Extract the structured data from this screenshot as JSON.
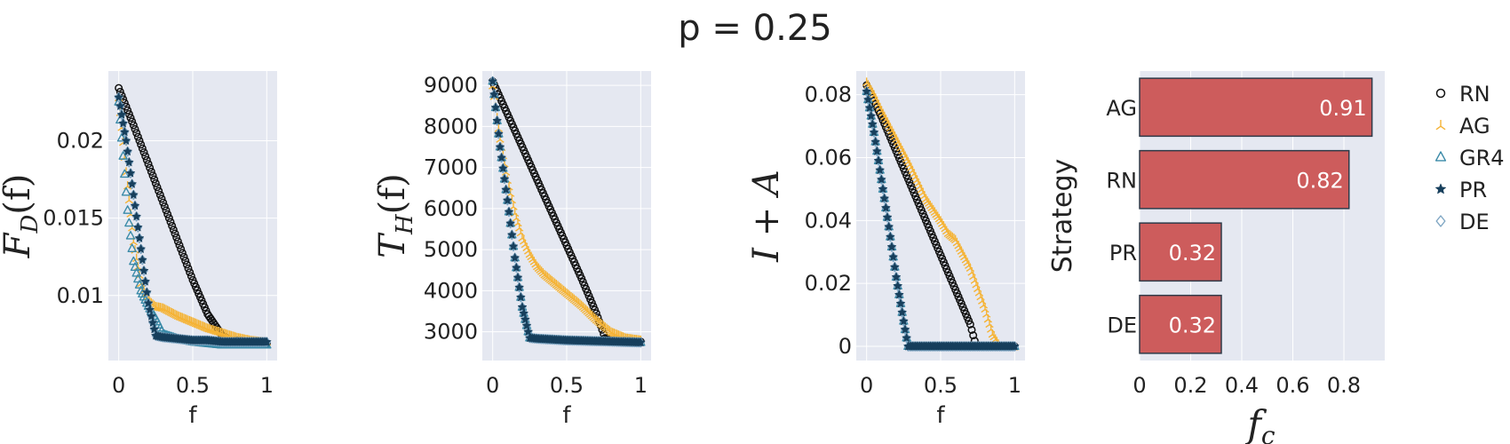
{
  "figure": {
    "title": "p = 0.25"
  },
  "legend": {
    "placement": "right",
    "items": [
      {
        "label": "RN",
        "marker": "circle-open",
        "color": "#111111"
      },
      {
        "label": "AG",
        "marker": "tri-up",
        "color": "#f5b335"
      },
      {
        "label": "GR4",
        "marker": "triangle-open",
        "color": "#3a8aa8"
      },
      {
        "label": "PR",
        "marker": "star",
        "color": "#173f5c"
      },
      {
        "label": "DE",
        "marker": "diamond-open",
        "color": "#7fa6c3"
      }
    ]
  },
  "chart_data": [
    {
      "type": "scatter",
      "xlabel": "f",
      "ylabel": "F_D(f)",
      "xlim": [
        -0.07,
        1.07
      ],
      "ylim": [
        0.0058,
        0.0245
      ],
      "xticks": [
        0,
        0.5,
        1
      ],
      "xtick_labels": [
        "0",
        "0.5",
        "1"
      ],
      "yticks": [
        0.01,
        0.015,
        0.02
      ],
      "ytick_labels": [
        "0.01",
        "0.015",
        "0.02"
      ],
      "grid": true,
      "series": [
        {
          "name": "RN",
          "x": [
            0,
            0.1,
            0.2,
            0.3,
            0.4,
            0.5,
            0.6,
            0.7,
            0.76,
            0.8,
            0.9,
            1.0
          ],
          "y": [
            0.0234,
            0.021,
            0.0185,
            0.016,
            0.0135,
            0.011,
            0.0088,
            0.0074,
            0.0071,
            0.0071,
            0.007,
            0.0069
          ]
        },
        {
          "name": "AG",
          "x": [
            0,
            0.05,
            0.1,
            0.15,
            0.2,
            0.25,
            0.3,
            0.4,
            0.5,
            0.6,
            0.7,
            0.8,
            0.9,
            1.0
          ],
          "y": [
            0.0228,
            0.018,
            0.0135,
            0.0108,
            0.0097,
            0.0093,
            0.0092,
            0.0087,
            0.0083,
            0.0079,
            0.0076,
            0.0073,
            0.0071,
            0.007
          ]
        },
        {
          "name": "GR4",
          "x": [
            0,
            0.03,
            0.06,
            0.1,
            0.15,
            0.2,
            0.25,
            0.3,
            0.4,
            0.5,
            0.6,
            0.7,
            0.8,
            0.9,
            1.0
          ],
          "y": [
            0.0225,
            0.019,
            0.0155,
            0.0122,
            0.0103,
            0.0093,
            0.0085,
            0.0075,
            0.0072,
            0.007,
            0.0069,
            0.0068,
            0.0068,
            0.0068,
            0.0068
          ]
        },
        {
          "name": "PR",
          "x": [
            0,
            0.05,
            0.1,
            0.15,
            0.2,
            0.25,
            0.3,
            0.4,
            0.5,
            0.6,
            0.7,
            0.8,
            0.9,
            1.0
          ],
          "y": [
            0.0228,
            0.02,
            0.0165,
            0.013,
            0.0095,
            0.0074,
            0.0073,
            0.0072,
            0.0071,
            0.0071,
            0.007,
            0.007,
            0.007,
            0.007
          ]
        },
        {
          "name": "DE",
          "x": [
            0,
            0.05,
            0.1,
            0.15,
            0.2,
            0.25,
            0.3,
            0.4,
            0.5,
            0.6,
            0.7,
            0.8,
            0.9,
            1.0
          ],
          "y": [
            0.0228,
            0.02,
            0.0165,
            0.013,
            0.0095,
            0.0074,
            0.0073,
            0.0072,
            0.0071,
            0.0071,
            0.007,
            0.007,
            0.007,
            0.007
          ]
        }
      ]
    },
    {
      "type": "scatter",
      "xlabel": "f",
      "ylabel": "T_H(f)",
      "xlim": [
        -0.07,
        1.07
      ],
      "ylim": [
        2300,
        9350
      ],
      "xticks": [
        0,
        0.5,
        1
      ],
      "xtick_labels": [
        "0",
        "0.5",
        "1"
      ],
      "yticks": [
        3000,
        4000,
        5000,
        6000,
        7000,
        8000,
        9000
      ],
      "ytick_labels": [
        "3000",
        "4000",
        "5000",
        "6000",
        "7000",
        "8000",
        "9000"
      ],
      "grid": true,
      "series": [
        {
          "name": "RN",
          "x": [
            0,
            0.1,
            0.2,
            0.3,
            0.4,
            0.5,
            0.6,
            0.7,
            0.76,
            0.8,
            0.9,
            1.0
          ],
          "y": [
            9100,
            8300,
            7500,
            6700,
            5900,
            5100,
            4300,
            3450,
            2850,
            2800,
            2780,
            2760
          ]
        },
        {
          "name": "AG",
          "x": [
            0,
            0.05,
            0.1,
            0.15,
            0.2,
            0.25,
            0.3,
            0.35,
            0.4,
            0.5,
            0.6,
            0.7,
            0.8,
            0.9,
            1.0
          ],
          "y": [
            9000,
            7700,
            6700,
            5900,
            5300,
            4900,
            4600,
            4400,
            4250,
            3950,
            3650,
            3300,
            3000,
            2850,
            2800
          ]
        },
        {
          "name": "GR4",
          "x": [
            0,
            0.05,
            0.1,
            0.15,
            0.2,
            0.25,
            0.3,
            0.4,
            0.5,
            0.6,
            0.7,
            0.8,
            0.9,
            1.0
          ],
          "y": [
            9100,
            7500,
            6200,
            4800,
            3600,
            2850,
            2830,
            2810,
            2790,
            2780,
            2770,
            2760,
            2750,
            2740
          ]
        },
        {
          "name": "PR",
          "x": [
            0,
            0.05,
            0.1,
            0.15,
            0.2,
            0.25,
            0.3,
            0.4,
            0.5,
            0.6,
            0.7,
            0.8,
            0.9,
            1.0
          ],
          "y": [
            9100,
            7500,
            6200,
            4800,
            3600,
            2850,
            2830,
            2810,
            2790,
            2780,
            2770,
            2760,
            2750,
            2740
          ]
        },
        {
          "name": "DE",
          "x": [
            0,
            0.05,
            0.1,
            0.15,
            0.2,
            0.25,
            0.3,
            0.4,
            0.5,
            0.6,
            0.7,
            0.8,
            0.9,
            1.0
          ],
          "y": [
            9100,
            7500,
            6200,
            4800,
            3600,
            2850,
            2830,
            2810,
            2790,
            2780,
            2770,
            2760,
            2750,
            2740
          ]
        }
      ]
    },
    {
      "type": "scatter",
      "xlabel": "f",
      "ylabel": "I + A",
      "xlim": [
        -0.07,
        1.07
      ],
      "ylim": [
        -0.0045,
        0.0875
      ],
      "xticks": [
        0,
        0.5,
        1
      ],
      "xtick_labels": [
        "0",
        "0.5",
        "1"
      ],
      "yticks": [
        0,
        0.02,
        0.04,
        0.06,
        0.08
      ],
      "ytick_labels": [
        "0",
        "0.02",
        "0.04",
        "0.06",
        "0.08"
      ],
      "grid": true,
      "series": [
        {
          "name": "RN",
          "x": [
            0,
            0.1,
            0.2,
            0.3,
            0.4,
            0.5,
            0.6,
            0.7,
            0.74,
            0.8,
            0.9,
            1.0
          ],
          "y": [
            0.083,
            0.073,
            0.062,
            0.051,
            0.04,
            0.029,
            0.018,
            0.007,
            0.0,
            0.0,
            0.0,
            0.0
          ]
        },
        {
          "name": "AG",
          "x": [
            0,
            0.05,
            0.1,
            0.2,
            0.3,
            0.4,
            0.5,
            0.55,
            0.6,
            0.7,
            0.8,
            0.85,
            0.9,
            1.0
          ],
          "y": [
            0.084,
            0.08,
            0.075,
            0.066,
            0.057,
            0.047,
            0.04,
            0.036,
            0.034,
            0.025,
            0.012,
            0.004,
            0.0,
            0.0
          ]
        },
        {
          "name": "GR4",
          "x": [
            0,
            0.05,
            0.1,
            0.15,
            0.2,
            0.25,
            0.28,
            0.3,
            0.4,
            0.5,
            0.6,
            0.7,
            0.8,
            0.9,
            1.0
          ],
          "y": [
            0.081,
            0.068,
            0.053,
            0.038,
            0.022,
            0.008,
            0.0,
            0.0,
            0.0,
            0.0,
            0.0,
            0.0,
            0.0,
            0.0,
            0.0
          ]
        },
        {
          "name": "PR",
          "x": [
            0,
            0.05,
            0.1,
            0.15,
            0.2,
            0.25,
            0.28,
            0.3,
            0.4,
            0.5,
            0.6,
            0.7,
            0.8,
            0.9,
            1.0
          ],
          "y": [
            0.081,
            0.068,
            0.053,
            0.038,
            0.022,
            0.008,
            0.0,
            0.0,
            0.0,
            0.0,
            0.0,
            0.0,
            0.0,
            0.0,
            0.0
          ]
        },
        {
          "name": "DE",
          "x": [
            0,
            0.05,
            0.1,
            0.15,
            0.2,
            0.25,
            0.28,
            0.3,
            0.4,
            0.5,
            0.6,
            0.7,
            0.8,
            0.9,
            1.0
          ],
          "y": [
            0.081,
            0.068,
            0.053,
            0.038,
            0.022,
            0.008,
            0.0,
            0.0,
            0.0,
            0.0,
            0.0,
            0.0,
            0.0,
            0.0,
            0.0
          ]
        }
      ]
    },
    {
      "type": "bar",
      "orientation": "horizontal",
      "xlabel": "f_c",
      "ylabel": "Strategy",
      "categories": [
        "AG",
        "RN",
        "PR",
        "DE"
      ],
      "values": [
        0.91,
        0.82,
        0.32,
        0.32
      ],
      "value_labels": [
        "0.91",
        "0.82",
        "0.32",
        "0.32"
      ],
      "xlim": [
        0,
        0.96
      ],
      "xticks": [
        0,
        0.2,
        0.4,
        0.6,
        0.8
      ],
      "xtick_labels": [
        "0",
        "0.2",
        "0.4",
        "0.6",
        "0.8"
      ],
      "bar_color": "#cd5c5c",
      "grid": true
    }
  ]
}
